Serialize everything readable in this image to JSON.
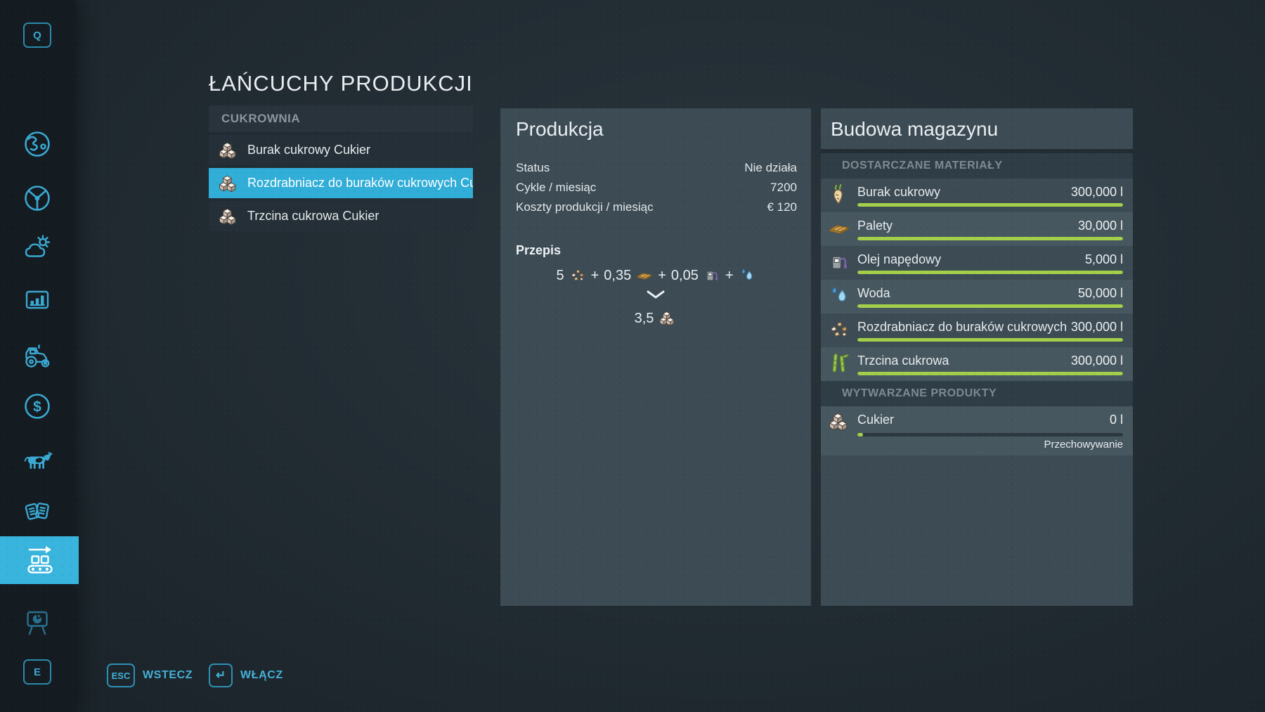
{
  "app": {
    "title": "ŁAŃCUCHY PRODUKCJI"
  },
  "colors": {
    "accent_cyan": "#38b4dd",
    "selected_row": "#31aed8",
    "progress_green": "#a3cf4b",
    "panel": "#3c4b54"
  },
  "sidebar": {
    "top_key": "Q",
    "bottom_key": "E",
    "icons": [
      "map-globe",
      "steering-wheel",
      "weather",
      "statistics",
      "garage-tractor",
      "finances",
      "animals",
      "contracts",
      "production-chains",
      "presentation"
    ],
    "active_icon": "production-chains"
  },
  "chain_list": {
    "group": "CUKROWNIA",
    "items": [
      {
        "label": "Burak cukrowy Cukier",
        "icon": "sugar",
        "selected": false
      },
      {
        "label": "Rozdrabniacz do buraków cukrowych Cukier",
        "icon": "sugar",
        "selected": true
      },
      {
        "label": "Trzcina cukrowa Cukier",
        "icon": "sugar",
        "selected": false
      }
    ]
  },
  "production": {
    "title": "Produkcja",
    "stats": [
      {
        "label": "Status",
        "value": "Nie działa"
      },
      {
        "label": "Cykle / miesiąc",
        "value": "7200"
      },
      {
        "label": "Koszty produkcji / miesiąc",
        "value": "€ 120"
      }
    ],
    "recipe": {
      "heading": "Przepis",
      "plus": "+",
      "inputs": [
        {
          "qty": "5",
          "icon": "beet-chips"
        },
        {
          "qty": "0,35",
          "icon": "pallet"
        },
        {
          "qty": "0,05",
          "icon": "diesel-pump"
        },
        {
          "qty": "",
          "icon": "water"
        }
      ],
      "output": {
        "qty": "3,5",
        "icon": "sugar"
      }
    }
  },
  "storage": {
    "title": "Budowa magazynu",
    "inputs_heading": "DOSTARCZANE MATERIAŁY",
    "outputs_heading": "WYTWARZANE PRODUKTY",
    "materials": [
      {
        "name": "Burak cukrowy",
        "amount": "300,000 l",
        "icon": "sugar-beet",
        "fill_pct": 100
      },
      {
        "name": "Palety",
        "amount": "30,000 l",
        "icon": "pallet",
        "fill_pct": 100
      },
      {
        "name": "Olej napędowy",
        "amount": "5,000 l",
        "icon": "diesel-pump",
        "fill_pct": 100
      },
      {
        "name": "Woda",
        "amount": "50,000 l",
        "icon": "water",
        "fill_pct": 100
      },
      {
        "name": "Rozdrabniacz do buraków cukrowych",
        "amount": "300,000 l",
        "icon": "beet-chips",
        "fill_pct": 100
      },
      {
        "name": "Trzcina cukrowa",
        "amount": "300,000 l",
        "icon": "sugar-cane",
        "fill_pct": 100
      }
    ],
    "products": [
      {
        "name": "Cukier",
        "amount": "0 l",
        "icon": "sugar",
        "fill_pct": 2,
        "note": "Przechowywanie"
      }
    ]
  },
  "footer": {
    "back": {
      "key": "ESC",
      "label": "WSTECZ"
    },
    "activate": {
      "key": "↵",
      "label": "WŁĄCZ"
    }
  }
}
